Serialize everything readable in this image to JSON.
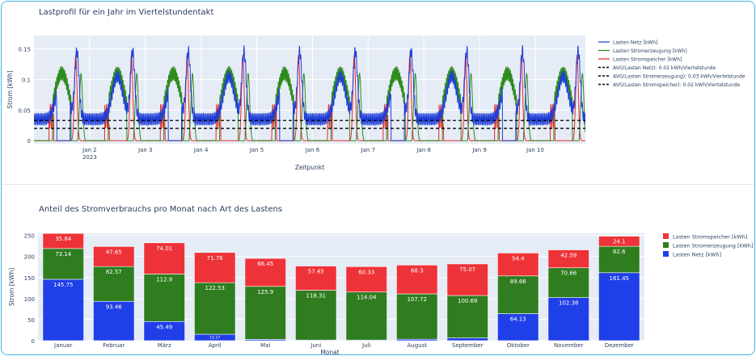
{
  "chart_data": [
    {
      "type": "line",
      "title": "Lastprofil für ein Jahr im Viertelstundentakt",
      "xlabel": "Zeitpunkt",
      "ylabel": "Strom [kWh]",
      "xticks": [
        "Jan 2\n2023",
        "Jan 3",
        "Jan 4",
        "Jan 5",
        "Jan 6",
        "Jan 7",
        "Jan 8",
        "Jan 9",
        "Jan 10"
      ],
      "xlim_days": [
        1.0,
        10.9
      ],
      "yticks": [
        "0",
        "0.05",
        "0.1",
        "0.15"
      ],
      "ylim": [
        -0.005,
        0.172
      ],
      "legend_position": "right",
      "series": [
        {
          "name": "Lasten Netz [kWh]",
          "color": "#1f3fd6",
          "style": "solid",
          "description": "daily double-peak grid load profile; peaks ~0.15-0.17 kWh in evening, ~0.1 midday, drops to 0 when generation active"
        },
        {
          "name": "Lasten Stromerzeugung [kWh]",
          "color": "#2e8b1e",
          "style": "solid"
        },
        {
          "name": "Lasten Stromspeicher [kWh]",
          "color": "#e8282b",
          "style": "solid"
        },
        {
          "name": "AVG(Lasten Netz): 0.02 kWh/Viertelstunde",
          "color": "#000000",
          "style": "dash",
          "value": 0.02
        },
        {
          "name": "AVG(Lasten Stromerzeugung): 0.03 kWh/Viertelstunde",
          "color": "#000000",
          "style": "dash",
          "value": 0.033
        },
        {
          "name": "AVG(Lasten Stromspeicher): 0.02 kWh/Viertelstunde",
          "color": "#000000",
          "style": "dash",
          "value": 0.02
        }
      ]
    },
    {
      "type": "bar",
      "stacked": true,
      "title": "Anteil des Stromverbrauchs pro Monat nach Art des Lastens",
      "xlabel": "Monat",
      "ylabel": "Strom [kWh]",
      "ylim": [
        0,
        255
      ],
      "yticks": [
        0,
        50,
        100,
        150,
        200,
        250
      ],
      "legend_position": "right",
      "categories": [
        "Januar",
        "Februar",
        "März",
        "April",
        "Mai",
        "Juni",
        "Juli",
        "August",
        "September",
        "Oktober",
        "November",
        "Dezember"
      ],
      "series": [
        {
          "name": "Lasten Netz [kWh]",
          "color": "#1f3fe8",
          "values": [
            145.75,
            93.46,
            45.49,
            15.17,
            3.0,
            1.5,
            1.5,
            3.5,
            6.5,
            64.13,
            102.38,
            161.45
          ],
          "labels": [
            "145.75",
            "93.46",
            "45.49",
            "15.17",
            "",
            "",
            "",
            "",
            "",
            "64.13",
            "102.38",
            "161.45"
          ]
        },
        {
          "name": "Lasten Stromerzeugung [kWh]",
          "color": "#2f7d1f",
          "values": [
            73.14,
            82.57,
            112.9,
            122.53,
            125.9,
            118.31,
            114.04,
            107.72,
            100.69,
            89.66,
            70.66,
            62.6
          ],
          "labels": [
            "73.14",
            "82.57",
            "112.9",
            "122.53",
            "125.9",
            "118.31",
            "114.04",
            "107.72",
            "100.69",
            "89.66",
            "70.66",
            "62.6"
          ]
        },
        {
          "name": "Lasten Stromspeicher [kWh]",
          "color": "#ee3338",
          "values": [
            35.84,
            47.65,
            74.01,
            71.76,
            66.45,
            57.45,
            60.33,
            68.3,
            75.07,
            54.4,
            42.59,
            24.1
          ],
          "labels": [
            "35.84",
            "47.65",
            "74.01",
            "71.76",
            "66.45",
            "57.45",
            "60.33",
            "68.3",
            "75.07",
            "54.4",
            "42.59",
            "24.1"
          ]
        }
      ]
    }
  ]
}
